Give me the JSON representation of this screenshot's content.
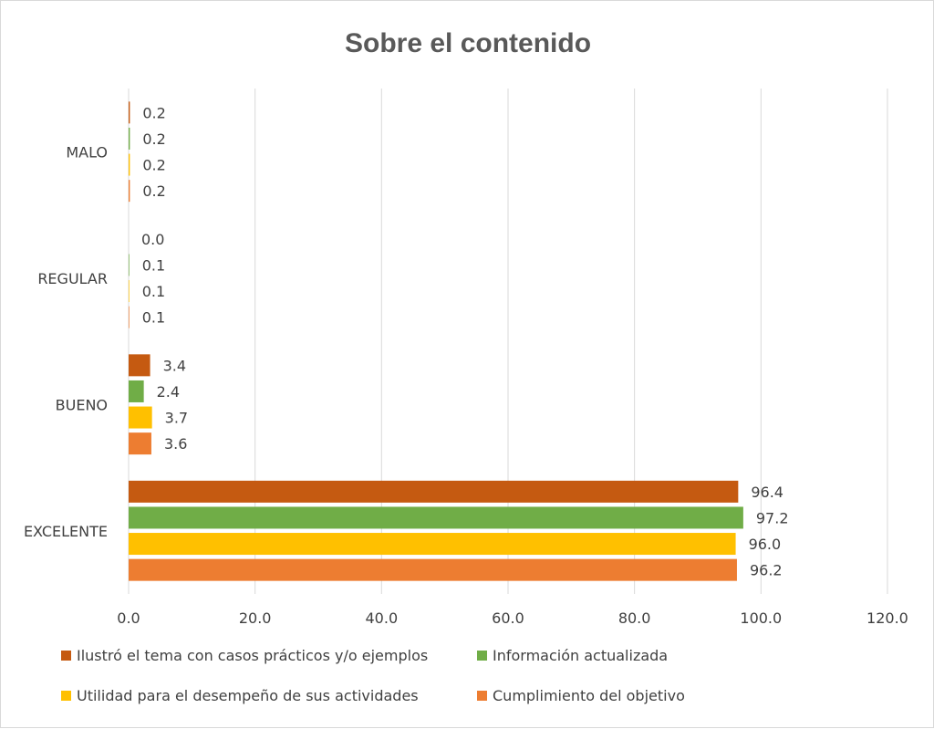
{
  "chart_data": {
    "type": "bar",
    "orientation": "horizontal",
    "title": "Sobre el contenido",
    "categories": [
      "EXCELENTE",
      "BUENO",
      "REGULAR",
      "MALO"
    ],
    "series": [
      {
        "name": "Cumplimiento del objetivo",
        "color": "#ed7d31",
        "values": [
          96.2,
          3.6,
          0.1,
          0.2
        ]
      },
      {
        "name": "Utilidad para el desempeño de sus actividades",
        "color": "#ffc000",
        "values": [
          96.0,
          3.7,
          0.1,
          0.2
        ]
      },
      {
        "name": "Información actualizada",
        "color": "#70ad47",
        "values": [
          97.2,
          2.4,
          0.1,
          0.2
        ]
      },
      {
        "name": "Ilustró el tema con casos prácticos y/o ejemplos",
        "color": "#c55a11",
        "values": [
          96.4,
          3.4,
          0.0,
          0.2
        ]
      }
    ],
    "xlim": [
      0,
      120
    ],
    "xticks": [
      "0.0",
      "20.0",
      "40.0",
      "60.0",
      "80.0",
      "100.0",
      "120.0"
    ],
    "grid": true,
    "legend_position": "bottom",
    "legend_order": [
      3,
      2,
      1,
      0
    ]
  }
}
